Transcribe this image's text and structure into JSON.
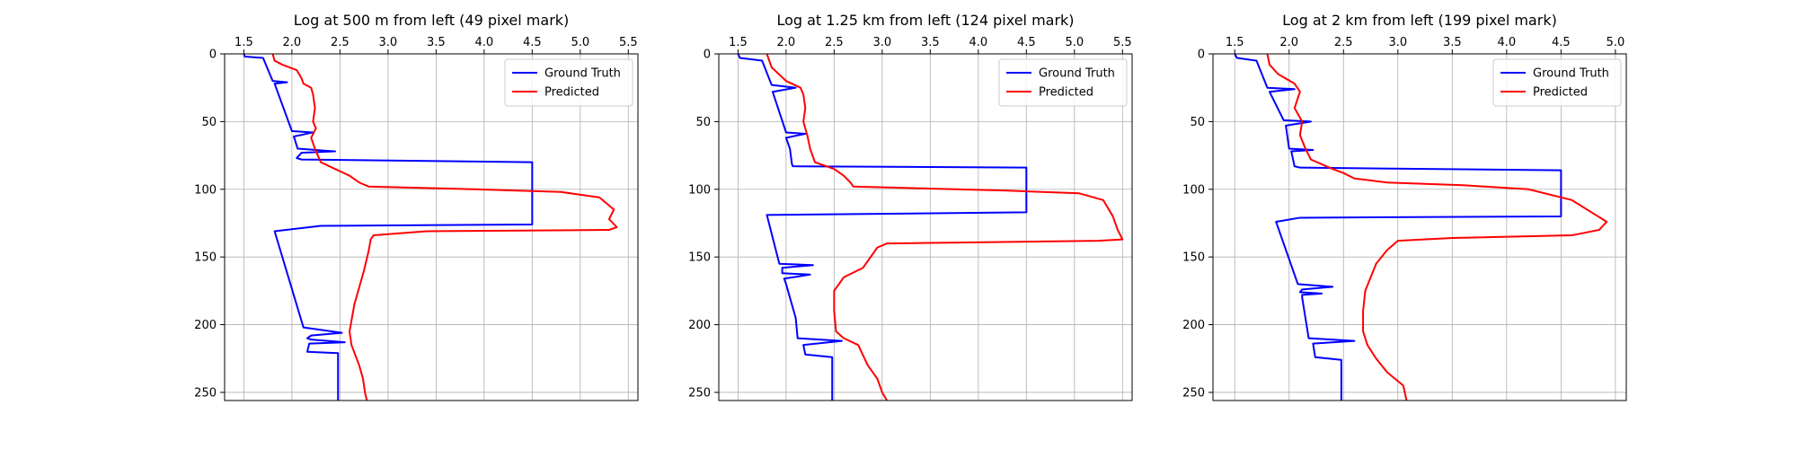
{
  "chart_data": [
    {
      "type": "line",
      "title": "Log at 500 m from left (49 pixel mark)",
      "xlabel": "",
      "ylabel": "",
      "xlim": [
        1.3,
        5.6
      ],
      "ylim": [
        256,
        0
      ],
      "xticks": [
        1.5,
        2.0,
        2.5,
        3.0,
        3.5,
        4.0,
        4.5,
        5.0,
        5.5
      ],
      "yticks": [
        0,
        50,
        100,
        150,
        200,
        250
      ],
      "xticks_position": "top",
      "y_inverted": true,
      "grid": true,
      "legend_position": "upper right",
      "series": [
        {
          "name": "Ground Truth",
          "color": "#0000ff",
          "points": [
            [
              1.5,
              0
            ],
            [
              1.51,
              2
            ],
            [
              1.7,
              3
            ],
            [
              1.8,
              20
            ],
            [
              1.95,
              21
            ],
            [
              1.82,
              22
            ],
            [
              2.0,
              57
            ],
            [
              2.22,
              58
            ],
            [
              2.02,
              61
            ],
            [
              2.06,
              70
            ],
            [
              2.45,
              72
            ],
            [
              2.1,
              73
            ],
            [
              2.05,
              77
            ],
            [
              2.1,
              78
            ],
            [
              4.5,
              80
            ],
            [
              4.5,
              126
            ],
            [
              2.3,
              127
            ],
            [
              1.82,
              131
            ],
            [
              2.12,
              202
            ],
            [
              2.52,
              206
            ],
            [
              2.2,
              208
            ],
            [
              2.16,
              210
            ],
            [
              2.2,
              211
            ],
            [
              2.55,
              213
            ],
            [
              2.18,
              214
            ],
            [
              2.16,
              220
            ],
            [
              2.48,
              221
            ],
            [
              2.48,
              256
            ]
          ]
        },
        {
          "name": "Predicted",
          "color": "#ff0000",
          "points": [
            [
              1.8,
              0
            ],
            [
              1.82,
              5
            ],
            [
              1.9,
              8
            ],
            [
              2.05,
              12
            ],
            [
              2.1,
              18
            ],
            [
              2.12,
              22
            ],
            [
              2.2,
              25
            ],
            [
              2.22,
              30
            ],
            [
              2.24,
              40
            ],
            [
              2.22,
              50
            ],
            [
              2.25,
              55
            ],
            [
              2.2,
              62
            ],
            [
              2.24,
              70
            ],
            [
              2.3,
              80
            ],
            [
              2.45,
              85
            ],
            [
              2.6,
              90
            ],
            [
              2.7,
              95
            ],
            [
              2.8,
              98
            ],
            [
              3.9,
              100
            ],
            [
              4.8,
              102
            ],
            [
              5.2,
              106
            ],
            [
              5.35,
              115
            ],
            [
              5.3,
              122
            ],
            [
              5.38,
              128
            ],
            [
              5.3,
              130
            ],
            [
              3.4,
              131
            ],
            [
              2.85,
              134
            ],
            [
              2.82,
              137
            ],
            [
              2.8,
              145
            ],
            [
              2.75,
              160
            ],
            [
              2.65,
              185
            ],
            [
              2.6,
              205
            ],
            [
              2.62,
              215
            ],
            [
              2.7,
              230
            ],
            [
              2.74,
              240
            ],
            [
              2.76,
              250
            ],
            [
              2.78,
              256
            ]
          ]
        }
      ]
    },
    {
      "type": "line",
      "title": "Log at 1.25 km from left (124 pixel mark)",
      "xlabel": "",
      "ylabel": "",
      "xlim": [
        1.3,
        5.6
      ],
      "ylim": [
        256,
        0
      ],
      "xticks": [
        1.5,
        2.0,
        2.5,
        3.0,
        3.5,
        4.0,
        4.5,
        5.0,
        5.5
      ],
      "yticks": [
        0,
        50,
        100,
        150,
        200,
        250
      ],
      "xticks_position": "top",
      "y_inverted": true,
      "grid": true,
      "legend_position": "upper right",
      "series": [
        {
          "name": "Ground Truth",
          "color": "#0000ff",
          "points": [
            [
              1.5,
              0
            ],
            [
              1.52,
              3
            ],
            [
              1.75,
              5
            ],
            [
              1.85,
              23
            ],
            [
              2.1,
              25
            ],
            [
              1.86,
              28
            ],
            [
              2.0,
              58
            ],
            [
              2.2,
              59
            ],
            [
              2.0,
              62
            ],
            [
              2.04,
              70
            ],
            [
              2.06,
              81
            ],
            [
              2.07,
              83
            ],
            [
              4.5,
              84
            ],
            [
              4.5,
              117
            ],
            [
              1.8,
              119
            ],
            [
              1.93,
              155
            ],
            [
              2.28,
              156
            ],
            [
              1.96,
              158
            ],
            [
              1.96,
              162
            ],
            [
              2.25,
              163
            ],
            [
              1.98,
              166
            ],
            [
              2.0,
              170
            ],
            [
              2.1,
              195
            ],
            [
              2.12,
              210
            ],
            [
              2.58,
              212
            ],
            [
              2.18,
              215
            ],
            [
              2.2,
              222
            ],
            [
              2.48,
              224
            ],
            [
              2.48,
              256
            ]
          ]
        },
        {
          "name": "Predicted",
          "color": "#ff0000",
          "points": [
            [
              1.8,
              0
            ],
            [
              1.85,
              10
            ],
            [
              2.0,
              20
            ],
            [
              2.15,
              25
            ],
            [
              2.18,
              30
            ],
            [
              2.2,
              40
            ],
            [
              2.18,
              50
            ],
            [
              2.22,
              60
            ],
            [
              2.25,
              70
            ],
            [
              2.3,
              80
            ],
            [
              2.5,
              85
            ],
            [
              2.6,
              90
            ],
            [
              2.67,
              95
            ],
            [
              2.7,
              98
            ],
            [
              4.3,
              101
            ],
            [
              5.05,
              103
            ],
            [
              5.3,
              108
            ],
            [
              5.4,
              120
            ],
            [
              5.45,
              130
            ],
            [
              5.5,
              137
            ],
            [
              5.25,
              138
            ],
            [
              3.05,
              140
            ],
            [
              2.95,
              143
            ],
            [
              2.8,
              158
            ],
            [
              2.6,
              165
            ],
            [
              2.5,
              175
            ],
            [
              2.5,
              190
            ],
            [
              2.52,
              205
            ],
            [
              2.6,
              210
            ],
            [
              2.75,
              215
            ],
            [
              2.85,
              230
            ],
            [
              2.95,
              240
            ],
            [
              3.0,
              250
            ],
            [
              3.05,
              256
            ]
          ]
        }
      ]
    },
    {
      "type": "line",
      "title": "Log at 2 km from left (199 pixel mark)",
      "xlabel": "",
      "ylabel": "",
      "xlim": [
        1.3,
        5.1
      ],
      "ylim": [
        256,
        0
      ],
      "xticks": [
        1.5,
        2.0,
        2.5,
        3.0,
        3.5,
        4.0,
        4.5,
        5.0
      ],
      "yticks": [
        0,
        50,
        100,
        150,
        200,
        250
      ],
      "xticks_position": "top",
      "y_inverted": true,
      "grid": true,
      "legend_position": "upper right",
      "series": [
        {
          "name": "Ground Truth",
          "color": "#0000ff",
          "points": [
            [
              1.5,
              0
            ],
            [
              1.52,
              3
            ],
            [
              1.7,
              5
            ],
            [
              1.8,
              25
            ],
            [
              2.05,
              26
            ],
            [
              1.82,
              28
            ],
            [
              1.95,
              49
            ],
            [
              2.2,
              50
            ],
            [
              1.97,
              53
            ],
            [
              2.0,
              70
            ],
            [
              2.22,
              71
            ],
            [
              2.02,
              72
            ],
            [
              2.05,
              83
            ],
            [
              2.1,
              84
            ],
            [
              4.5,
              86
            ],
            [
              4.5,
              120
            ],
            [
              2.1,
              121
            ],
            [
              1.88,
              124
            ],
            [
              2.08,
              170
            ],
            [
              2.4,
              172
            ],
            [
              2.12,
              174
            ],
            [
              2.1,
              176
            ],
            [
              2.3,
              177
            ],
            [
              2.12,
              178
            ],
            [
              2.12,
              180
            ],
            [
              2.18,
              210
            ],
            [
              2.6,
              212
            ],
            [
              2.22,
              214
            ],
            [
              2.24,
              224
            ],
            [
              2.48,
              226
            ],
            [
              2.48,
              256
            ]
          ]
        },
        {
          "name": "Predicted",
          "color": "#ff0000",
          "points": [
            [
              1.8,
              0
            ],
            [
              1.82,
              8
            ],
            [
              1.9,
              15
            ],
            [
              2.05,
              22
            ],
            [
              2.1,
              28
            ],
            [
              2.05,
              40
            ],
            [
              2.12,
              50
            ],
            [
              2.1,
              60
            ],
            [
              2.15,
              70
            ],
            [
              2.2,
              78
            ],
            [
              2.4,
              85
            ],
            [
              2.5,
              88
            ],
            [
              2.6,
              92
            ],
            [
              2.9,
              95
            ],
            [
              3.6,
              97
            ],
            [
              4.2,
              100
            ],
            [
              4.6,
              108
            ],
            [
              4.8,
              118
            ],
            [
              4.92,
              124
            ],
            [
              4.85,
              130
            ],
            [
              4.6,
              134
            ],
            [
              3.5,
              136
            ],
            [
              3.0,
              138
            ],
            [
              2.9,
              145
            ],
            [
              2.8,
              155
            ],
            [
              2.75,
              165
            ],
            [
              2.7,
              175
            ],
            [
              2.68,
              190
            ],
            [
              2.68,
              205
            ],
            [
              2.72,
              215
            ],
            [
              2.8,
              225
            ],
            [
              2.9,
              235
            ],
            [
              3.05,
              245
            ],
            [
              3.08,
              256
            ]
          ]
        }
      ]
    }
  ]
}
